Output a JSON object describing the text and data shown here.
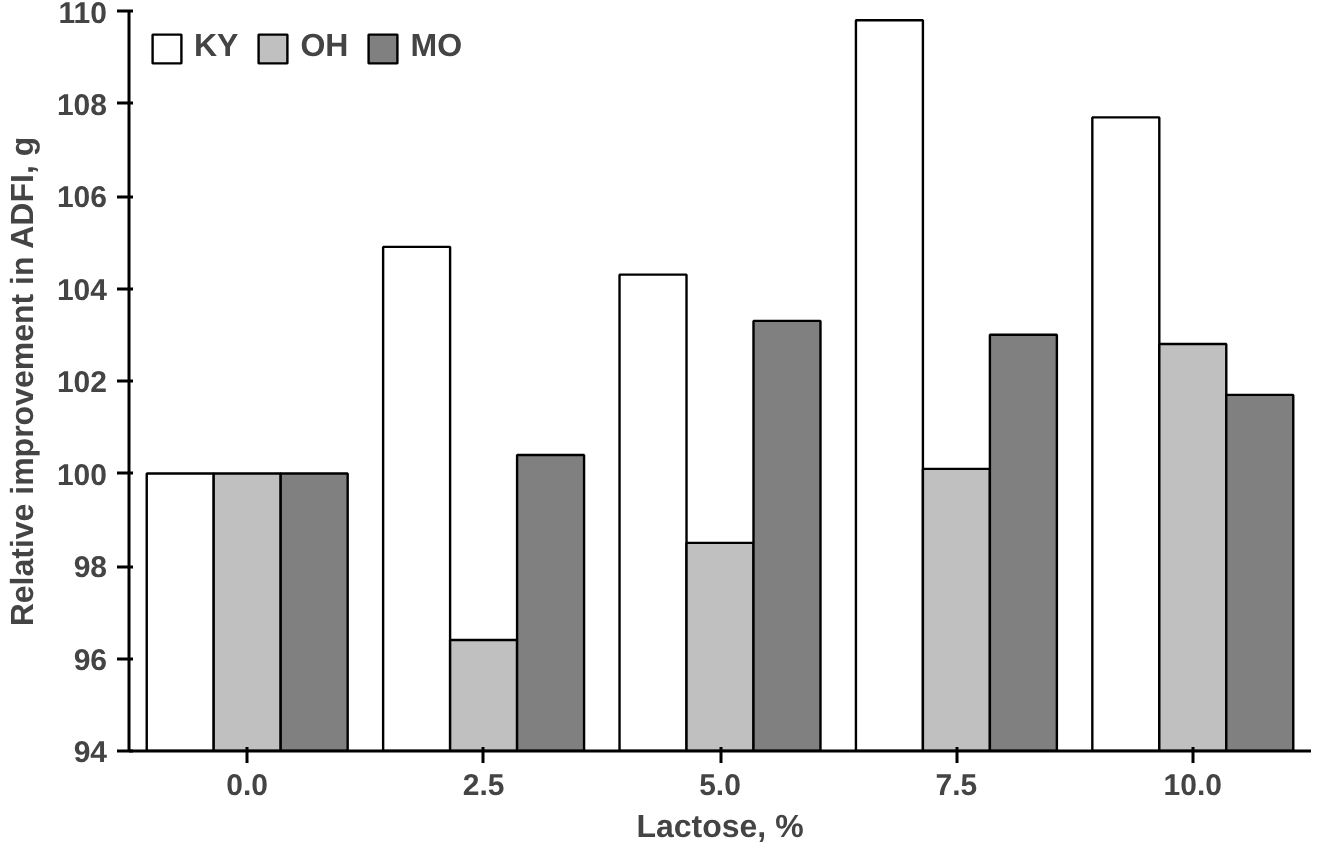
{
  "chart_data": {
    "type": "bar",
    "xlabel": "Lactose, %",
    "ylabel": "Relative improvement in ADFI, g",
    "categories": [
      "0.0",
      "2.5",
      "5.0",
      "7.5",
      "10.0"
    ],
    "series": [
      {
        "name": "KY",
        "color": "#ffffff",
        "values": [
          100,
          104.9,
          104.3,
          109.8,
          107.7
        ]
      },
      {
        "name": "OH",
        "color": "#c0c0c0",
        "values": [
          100,
          96.4,
          98.5,
          100.1,
          102.8
        ]
      },
      {
        "name": "MO",
        "color": "#808080",
        "values": [
          100,
          100.4,
          103.3,
          103.0,
          101.7
        ]
      }
    ],
    "ylim": [
      94,
      110
    ],
    "yticks": [
      94,
      96,
      98,
      100,
      102,
      104,
      106,
      108,
      110
    ],
    "grid": false,
    "legend": "top left"
  }
}
